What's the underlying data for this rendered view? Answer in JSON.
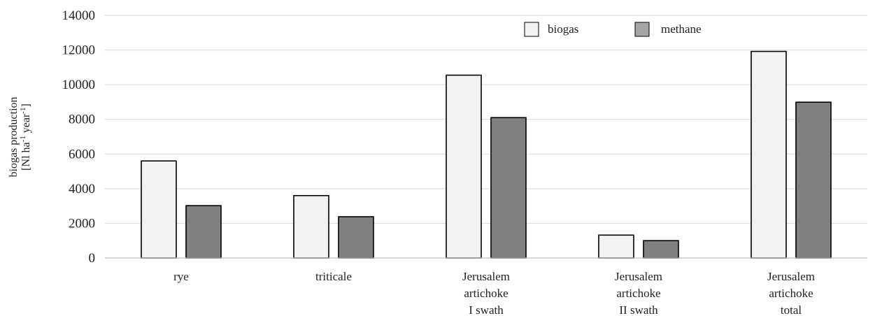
{
  "chart_data": {
    "type": "bar",
    "title": "",
    "xlabel": "",
    "ylabel": [
      "biogas production",
      "[Nl ha",
      "-1",
      " year",
      "-1",
      "]"
    ],
    "ylim": [
      0,
      14000
    ],
    "yticks": [
      0,
      2000,
      4000,
      6000,
      8000,
      10000,
      12000,
      14000
    ],
    "grid": true,
    "legend_position": "top-center",
    "categories": [
      [
        "rye"
      ],
      [
        "triticale"
      ],
      [
        "Jerusalem",
        "artichoke",
        "I swath"
      ],
      [
        "Jerusalem",
        "artichoke",
        "II swath"
      ],
      [
        "Jerusalem",
        "artichoke",
        "total"
      ]
    ],
    "series": [
      {
        "name": "biogas",
        "color": "#f2f2f2",
        "values": [
          5600,
          3600,
          10550,
          1320,
          11920
        ]
      },
      {
        "name": "methane",
        "color": "#808080",
        "values": [
          3020,
          2380,
          8100,
          1000,
          8990
        ]
      }
    ],
    "legend_colors": [
      "#f2f2f2",
      "#a6a6a6"
    ]
  }
}
